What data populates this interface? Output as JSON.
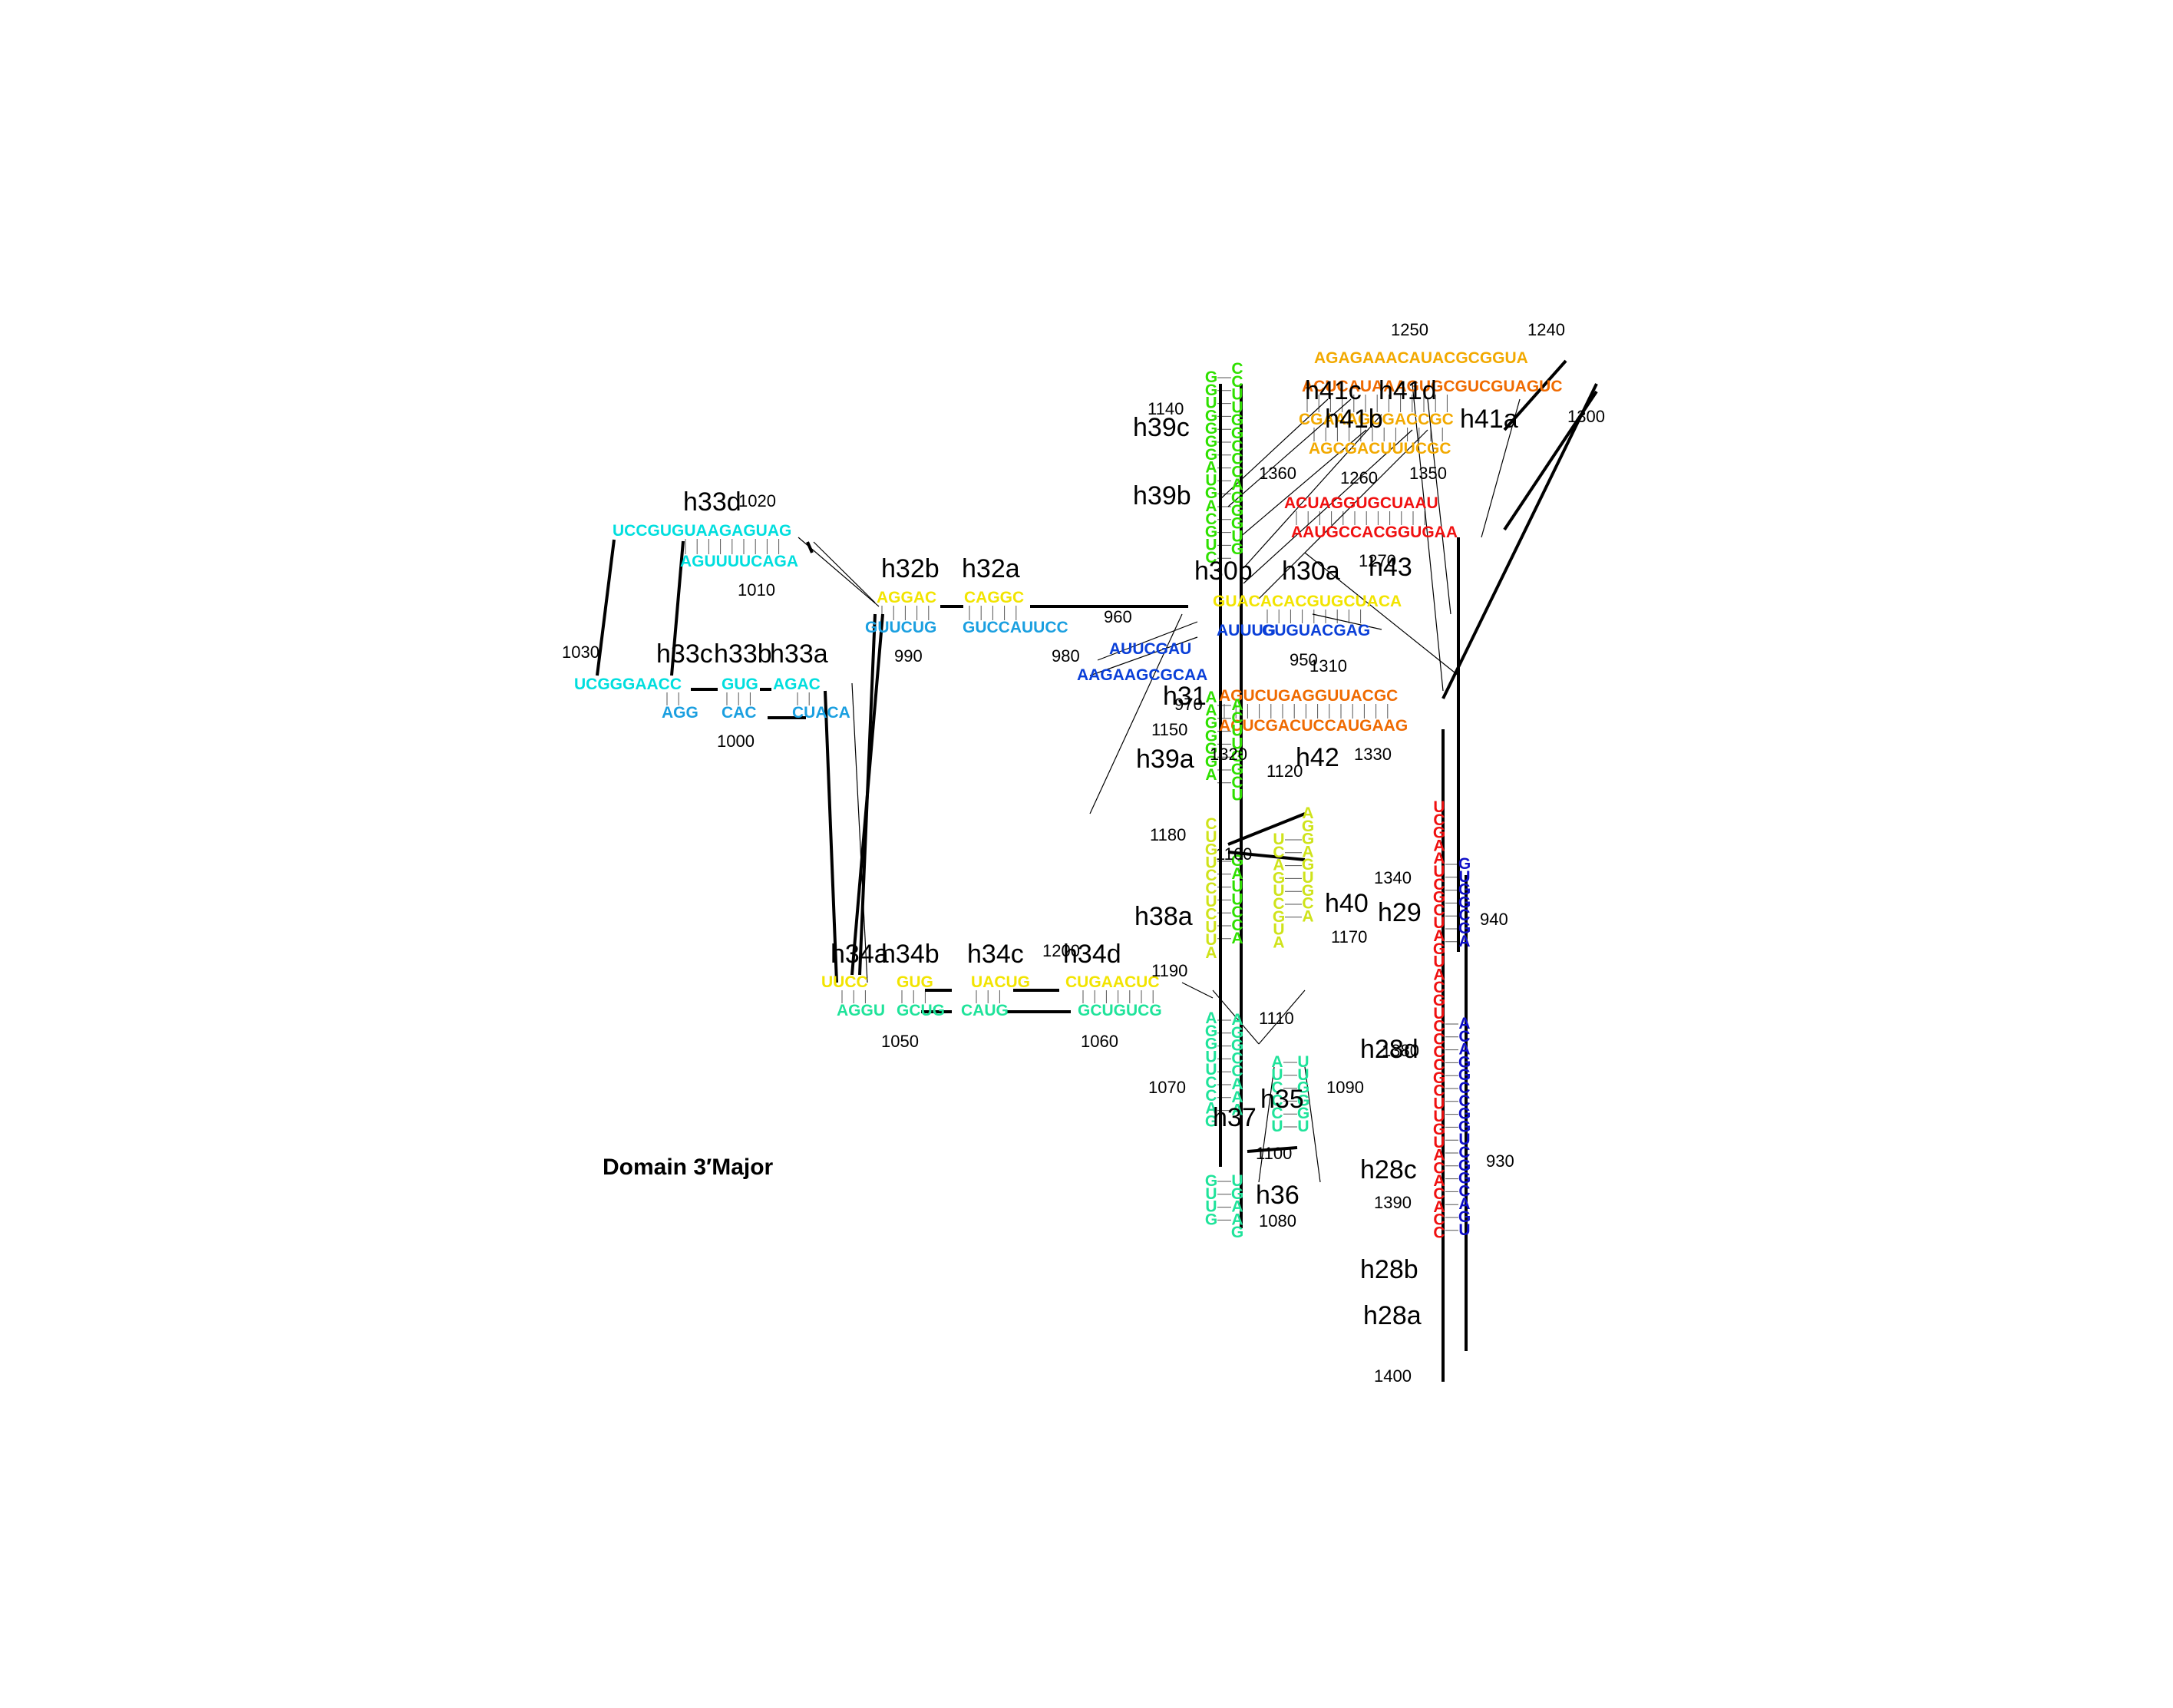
{
  "title": "Domain 3′Major",
  "colors": {
    "cyan": "#00dede",
    "sky": "#1a9fe0",
    "blue": "#0a3fd8",
    "navy": "#1010c8",
    "yellow": "#f2e400",
    "lime": "#cfe31a",
    "green": "#2fe000",
    "teal": "#1fe39a",
    "orange": "#f2a900",
    "darkorange": "#ef6a00",
    "red": "#f01010"
  },
  "helix_labels": [
    "h33d",
    "h33c",
    "h33b",
    "h33a",
    "h32b",
    "h32a",
    "h30b",
    "h30a",
    "h31",
    "h39c",
    "h39b",
    "h39a",
    "h38a",
    "h40",
    "h41c",
    "h41d",
    "h41b",
    "h41a",
    "h43",
    "h42",
    "h29",
    "h34a",
    "h34b",
    "h34c",
    "h34d",
    "h35",
    "h36",
    "h37",
    "h28d",
    "h28c",
    "h28b",
    "h28a"
  ],
  "numbers": [
    "1250",
    "1240",
    "1300",
    "1140",
    "1360",
    "1350",
    "1260",
    "1270",
    "1020",
    "1010",
    "1030",
    "1000",
    "990",
    "960",
    "980",
    "950",
    "970",
    "1310",
    "1150",
    "1320",
    "1120",
    "1330",
    "1180",
    "1160",
    "1340",
    "1170",
    "1190",
    "1110",
    "1080",
    "1090",
    "1050",
    "1060",
    "1200",
    "1070",
    "1100",
    "940",
    "930",
    "1380",
    "1390",
    "1400"
  ],
  "segments": [
    {
      "id": "h33-top-a",
      "text": "UCCGUGUAAGAGUAG",
      "color": "cyan"
    },
    {
      "id": "h33-top-b",
      "text": "AGUUUUCAGA",
      "color": "cyan"
    },
    {
      "id": "h33-mid-a",
      "text": "UCGGGAACC",
      "color": "cyan"
    },
    {
      "id": "h33-mid-b",
      "text": "GUG",
      "color": "cyan"
    },
    {
      "id": "h33-mid-c",
      "text": "AGAC",
      "color": "cyan"
    },
    {
      "id": "h33-bot-a",
      "text": "AGG",
      "color": "sky"
    },
    {
      "id": "h33-bot-b",
      "text": "CAC",
      "color": "sky"
    },
    {
      "id": "h33-bot-c",
      "text": "CUACA",
      "color": "sky"
    },
    {
      "id": "h32-top-a",
      "text": "AGGAC",
      "color": "yellow"
    },
    {
      "id": "h32-top-b",
      "text": "CAGGC",
      "color": "yellow"
    },
    {
      "id": "h32-bot-a",
      "text": "GUUCUG",
      "color": "sky"
    },
    {
      "id": "h32-bot-b",
      "text": "GUCCAUUCC",
      "color": "sky"
    },
    {
      "id": "h30-top",
      "text": "GUACACACGUGCUACA",
      "color": "yellow"
    },
    {
      "id": "h30-bot-a",
      "text": "AUUCGAU",
      "color": "blue"
    },
    {
      "id": "h30-bot-b",
      "text": "AUUUG",
      "color": "blue"
    },
    {
      "id": "h30-bot-c",
      "text": "GUGUACGAG",
      "color": "blue"
    },
    {
      "id": "h31-loop",
      "text": "AAGAAGCGCAA",
      "color": "blue"
    },
    {
      "id": "h41-loop",
      "text": "AGAGAAACAUACGCGGUA",
      "color": "orange"
    },
    {
      "id": "h41-top",
      "text": "ACUCAUAAAGUGCGUCGUAGUC",
      "color": "darkorange"
    },
    {
      "id": "h41-mid",
      "text": "CGAAAGCGACCGC",
      "color": "orange"
    },
    {
      "id": "h41-bot",
      "text": "AGCGACUUUCGC",
      "color": "orange"
    },
    {
      "id": "h43-top",
      "text": "ACUAGGUGCUAAU",
      "color": "red"
    },
    {
      "id": "h43-bot",
      "text": "AAUGCCACGGUGAA",
      "color": "red"
    },
    {
      "id": "h42-top",
      "text": "AGUCUGAGGUUACGC",
      "color": "darkorange"
    },
    {
      "id": "h42-bot",
      "text": "ACUCGACUCCAUGAAG",
      "color": "darkorange"
    },
    {
      "id": "h34-top-a",
      "text": "UUCC",
      "color": "yellow"
    },
    {
      "id": "h34-top-b",
      "text": "GUG",
      "color": "yellow"
    },
    {
      "id": "h34-top-c",
      "text": "UACUG",
      "color": "yellow"
    },
    {
      "id": "h34-top-d",
      "text": "CUGAACUC",
      "color": "yellow"
    },
    {
      "id": "h34-bot-a",
      "text": "AGGU",
      "color": "teal"
    },
    {
      "id": "h34-bot-b",
      "text": "GCUG",
      "color": "teal"
    },
    {
      "id": "h34-bot-c",
      "text": "CAUG",
      "color": "teal"
    },
    {
      "id": "h34-bot-d",
      "text": "GCUGUCG",
      "color": "teal"
    },
    {
      "id": "v-h39-left",
      "text": "GGUGGGGAUGACGUC",
      "color": "green"
    },
    {
      "id": "v-h39-right",
      "text": "CCUUGGCCCAGGGUG",
      "color": "green"
    },
    {
      "id": "v-h39a-left",
      "text": "AAGGGGA",
      "color": "green"
    },
    {
      "id": "v-h39a-right",
      "text": "ACUUGGCU",
      "color": "green"
    },
    {
      "id": "v-h38-left",
      "text": "CUGUCCUCUUA",
      "color": "lime"
    },
    {
      "id": "v-h38-right",
      "text": "GAUUCCA",
      "color": "green"
    },
    {
      "id": "v-h40-left",
      "text": "UCAGUCGUA",
      "color": "lime"
    },
    {
      "id": "v-h40-right",
      "text": "AGGAGUGCA",
      "color": "lime"
    },
    {
      "id": "v-h37-left",
      "text": "AGGUUCCAG",
      "color": "teal"
    },
    {
      "id": "v-h37-right",
      "text": "AGGCCAAA",
      "color": "teal"
    },
    {
      "id": "v-h36-left",
      "text": "GUUG",
      "color": "teal"
    },
    {
      "id": "v-h36-right",
      "text": "UGAAG",
      "color": "teal"
    },
    {
      "id": "v-h35-left",
      "text": "AUCCCU",
      "color": "teal"
    },
    {
      "id": "v-h35-right",
      "text": "UUGGGU",
      "color": "teal"
    },
    {
      "id": "v-h28-left",
      "text": "UCGAAUCGCUAGUACGUCCCCGCUUGUACACACC",
      "color": "red"
    },
    {
      "id": "v-h29-right",
      "text": "GUGGCGA",
      "color": "navy"
    },
    {
      "id": "v-h28-right",
      "text": "ACAGGCCGGUCGGCAGU",
      "color": "navy"
    }
  ]
}
